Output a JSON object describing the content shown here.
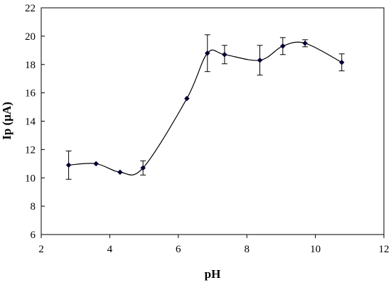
{
  "chart_data": {
    "type": "line",
    "title": "",
    "xlabel": "pH",
    "ylabel": "Ip (μA)",
    "xlim": [
      2,
      12
    ],
    "ylim": [
      6,
      22
    ],
    "xticks": [
      2,
      4,
      6,
      8,
      10,
      12
    ],
    "yticks": [
      6,
      8,
      10,
      12,
      14,
      16,
      18,
      20,
      22
    ],
    "grid": false,
    "legend": "none",
    "smooth": true,
    "series": [
      {
        "color": "#000033",
        "x": [
          2.8,
          3.6,
          4.3,
          4.97,
          6.25,
          6.85,
          7.35,
          8.38,
          9.05,
          9.7,
          10.77
        ],
        "y": [
          10.9,
          11.0,
          10.4,
          10.7,
          15.6,
          18.8,
          18.7,
          18.3,
          19.3,
          19.5,
          18.15
        ],
        "error": [
          1.0,
          0,
          0,
          0.5,
          0,
          1.3,
          0.65,
          1.05,
          0.6,
          0.25,
          0.6
        ]
      }
    ]
  }
}
